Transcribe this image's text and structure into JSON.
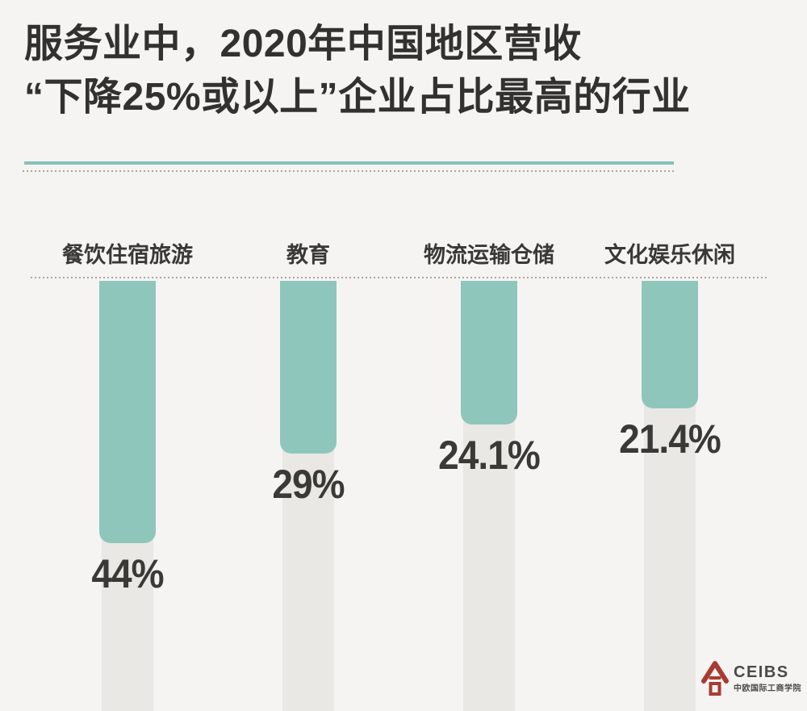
{
  "title": {
    "line1": "服务业中，2020年中国地区营收",
    "line2": "“下降25%或以上”企业占比最高的行业"
  },
  "chart_data": {
    "type": "bar",
    "orientation": "hanging-from-top",
    "title": "服务业中，2020年中国地区营收“下降25%或以上”企业占比最高的行业",
    "categories": [
      "餐饮住宿旅游",
      "教育",
      "物流运输仓储",
      "文化娱乐休闲"
    ],
    "values": [
      44,
      29,
      24.1,
      21.4
    ],
    "value_labels": [
      "44%",
      "29%",
      "24.1%",
      "21.4%"
    ],
    "unit": "%",
    "ylim": [
      0,
      50
    ],
    "grid": false,
    "legend": "none",
    "baseline_style": "dotted",
    "bar_color": "#8fc6bc",
    "track_color": "#e9e8e5"
  },
  "colors": {
    "background": "#f5f4f2",
    "title_text": "#333130",
    "divider_teal": "#85c2b6",
    "dotted_line": "#aba49e",
    "value_text": "#3b3936",
    "logo_red": "#a93b32",
    "logo_gray": "#4b4a47"
  },
  "footer": {
    "logo_wordmark": "CEIBS",
    "logo_chinese": "中欧国际工商学院"
  }
}
